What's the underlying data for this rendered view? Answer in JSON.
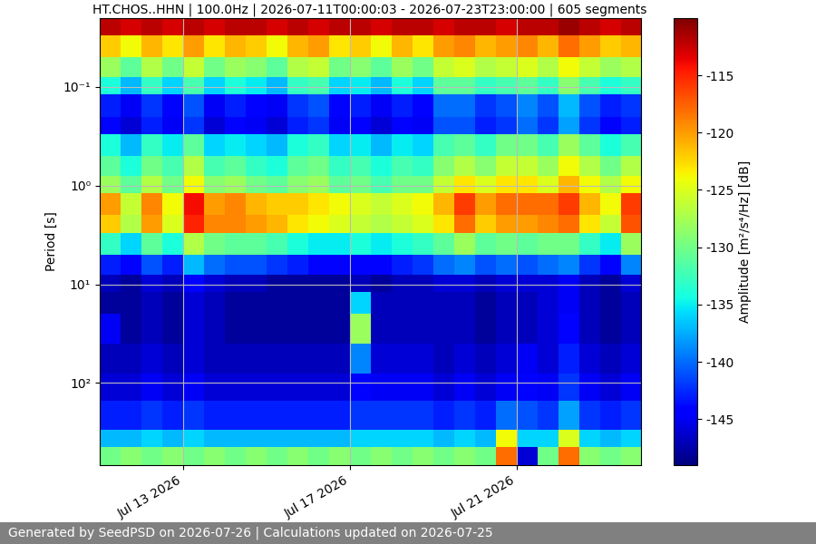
{
  "chart_data": {
    "type": "heatmap",
    "title": "HT.CHOS..HHN | 100.0Hz | 2026-07-11T00:00:03 - 2026-07-23T23:00:00 | 605 segments",
    "ylabel": "Period [s]",
    "footer": "Generated by SeedPSD on 2026-07-26 | Calculations updated on 2026-07-25",
    "log": "y",
    "grid": true,
    "xlim": [
      "2026-07-11T00:00:03",
      "2026-07-23T23:00:00"
    ],
    "xticks": [
      {
        "value": "2026-07-13",
        "label": "Jul 13 2026"
      },
      {
        "value": "2026-07-17",
        "label": "Jul 17 2026"
      },
      {
        "value": "2026-07-21",
        "label": "Jul 21 2026"
      }
    ],
    "ylim": [
      680,
      0.02
    ],
    "yticks": [
      {
        "value": 0.1,
        "label": "10⁻¹"
      },
      {
        "value": 1,
        "label": "10⁰"
      },
      {
        "value": 10,
        "label": "10¹"
      },
      {
        "value": 100,
        "label": "10²"
      }
    ],
    "time_edges": [
      "2026-07-11T00:00:03",
      "2026-07-11T12:00:00",
      "2026-07-12T00:00:00",
      "2026-07-12T12:00:00",
      "2026-07-13T00:00:00",
      "2026-07-13T12:00:00",
      "2026-07-14T00:00:00",
      "2026-07-14T12:00:00",
      "2026-07-15T00:00:00",
      "2026-07-15T12:00:00",
      "2026-07-16T00:00:00",
      "2026-07-16T12:00:00",
      "2026-07-17T00:00:00",
      "2026-07-17T12:00:00",
      "2026-07-18T00:00:00",
      "2026-07-18T12:00:00",
      "2026-07-19T00:00:00",
      "2026-07-19T12:00:00",
      "2026-07-20T00:00:00",
      "2026-07-20T12:00:00",
      "2026-07-21T00:00:00",
      "2026-07-21T12:00:00",
      "2026-07-22T00:00:00",
      "2026-07-22T12:00:00",
      "2026-07-23T00:00:00",
      "2026-07-23T12:00:00",
      "2026-07-23T23:00:00"
    ],
    "period_edges": [
      0.02,
      0.03,
      0.05,
      0.08,
      0.12,
      0.2,
      0.3,
      0.5,
      0.8,
      1.2,
      2,
      3,
      5,
      8,
      12,
      20,
      40,
      80,
      150,
      300,
      450,
      680
    ],
    "cells": [
      [
        -112,
        -113,
        -112,
        -113,
        -112,
        -113,
        -112,
        -112,
        -113,
        -112,
        -113,
        -112,
        -112,
        -113,
        -112,
        -112,
        -113,
        -112,
        -112,
        -113,
        -112,
        -112,
        -111,
        -112,
        -113,
        -112
      ],
      [
        -122,
        -124,
        -121,
        -123,
        -120,
        -123,
        -121,
        -122,
        -124,
        -121,
        -120,
        -123,
        -122,
        -124,
        -121,
        -123,
        -120,
        -119,
        -121,
        -120,
        -119,
        -121,
        -118,
        -120,
        -122,
        -121
      ],
      [
        -128,
        -131,
        -127,
        -130,
        -126,
        -130,
        -128,
        -129,
        -131,
        -127,
        -126,
        -130,
        -129,
        -131,
        -128,
        -130,
        -126,
        -125,
        -127,
        -126,
        -125,
        -127,
        -124,
        -126,
        -128,
        -127
      ],
      [
        -134,
        -137,
        -133,
        -136,
        -132,
        -136,
        -134,
        -135,
        -137,
        -133,
        -132,
        -136,
        -135,
        -137,
        -134,
        -136,
        -131,
        -131,
        -133,
        -132,
        -131,
        -133,
        -129,
        -132,
        -134,
        -133
      ],
      [
        -143,
        -145,
        -142,
        -144,
        -141,
        -145,
        -143,
        -144,
        -145,
        -142,
        -141,
        -144,
        -143,
        -145,
        -143,
        -144,
        -140,
        -140,
        -142,
        -141,
        -139,
        -141,
        -137,
        -141,
        -143,
        -142
      ],
      [
        -144,
        -146,
        -143,
        -145,
        -142,
        -146,
        -144,
        -145,
        -146,
        -143,
        -142,
        -145,
        -144,
        -146,
        -144,
        -145,
        -141,
        -141,
        -143,
        -142,
        -140,
        -142,
        -138,
        -142,
        -144,
        -143
      ],
      [
        -134,
        -137,
        -133,
        -135,
        -131,
        -136,
        -135,
        -136,
        -137,
        -134,
        -133,
        -136,
        -135,
        -137,
        -135,
        -136,
        -132,
        -131,
        -133,
        -130,
        -130,
        -132,
        -128,
        -131,
        -134,
        -132
      ],
      [
        -131,
        -134,
        -130,
        -132,
        -127,
        -132,
        -131,
        -133,
        -134,
        -131,
        -130,
        -133,
        -132,
        -134,
        -132,
        -133,
        -129,
        -127,
        -129,
        -126,
        -126,
        -128,
        -124,
        -127,
        -130,
        -127
      ],
      [
        -128,
        -131,
        -127,
        -130,
        -124,
        -129,
        -128,
        -130,
        -131,
        -129,
        -128,
        -131,
        -130,
        -132,
        -130,
        -130,
        -126,
        -123,
        -125,
        -123,
        -123,
        -125,
        -121,
        -124,
        -127,
        -124
      ],
      [
        -120,
        -126,
        -119,
        -124,
        -114,
        -120,
        -119,
        -121,
        -122,
        -122,
        -123,
        -124,
        -125,
        -126,
        -125,
        -124,
        -121,
        -116,
        -120,
        -118,
        -118,
        -118,
        -116,
        -121,
        -124,
        -116
      ],
      [
        -122,
        -127,
        -120,
        -125,
        -115,
        -119,
        -119,
        -120,
        -121,
        -123,
        -124,
        -125,
        -126,
        -127,
        -126,
        -125,
        -123,
        -118,
        -122,
        -120,
        -120,
        -119,
        -118,
        -123,
        -126,
        -117
      ],
      [
        -133,
        -136,
        -131,
        -134,
        -127,
        -130,
        -131,
        -131,
        -132,
        -134,
        -135,
        -135,
        -134,
        -135,
        -134,
        -133,
        -131,
        -128,
        -131,
        -130,
        -131,
        -130,
        -130,
        -133,
        -135,
        -128
      ],
      [
        -143,
        -144,
        -141,
        -143,
        -137,
        -140,
        -141,
        -141,
        -142,
        -143,
        -144,
        -144,
        -144,
        -144,
        -143,
        -142,
        -140,
        -139,
        -141,
        -140,
        -141,
        -140,
        -139,
        -142,
        -144,
        -139
      ],
      [
        -147,
        -148,
        -146,
        -147,
        -144,
        -146,
        -147,
        -147,
        -148,
        -148,
        -148,
        -148,
        -147,
        -148,
        -147,
        -147,
        -146,
        -146,
        -147,
        -146,
        -146,
        -146,
        -145,
        -147,
        -148,
        -146
      ],
      [
        -148,
        -148,
        -147,
        -148,
        -146,
        -147,
        -148,
        -148,
        -148,
        -148,
        -148,
        -148,
        -136,
        -147,
        -147,
        -147,
        -147,
        -147,
        -148,
        -147,
        -147,
        -146,
        -145,
        -147,
        -148,
        -147
      ],
      [
        -145,
        -148,
        -147,
        -148,
        -146,
        -147,
        -148,
        -148,
        -148,
        -148,
        -148,
        -148,
        -128,
        -147,
        -147,
        -147,
        -147,
        -147,
        -148,
        -147,
        -147,
        -146,
        -144,
        -147,
        -148,
        -147
      ],
      [
        -147,
        -147,
        -146,
        -147,
        -146,
        -147,
        -147,
        -147,
        -147,
        -147,
        -147,
        -147,
        -139,
        -146,
        -146,
        -146,
        -147,
        -146,
        -147,
        -146,
        -145,
        -146,
        -143,
        -146,
        -147,
        -146
      ],
      [
        -146,
        -146,
        -145,
        -146,
        -145,
        -146,
        -146,
        -146,
        -146,
        -146,
        -146,
        -146,
        -144,
        -145,
        -145,
        -145,
        -146,
        -145,
        -146,
        -145,
        -144,
        -145,
        -142,
        -145,
        -146,
        -145
      ],
      [
        -143,
        -143,
        -142,
        -143,
        -142,
        -143,
        -143,
        -143,
        -143,
        -143,
        -143,
        -143,
        -142,
        -142,
        -142,
        -142,
        -143,
        -142,
        -143,
        -140,
        -141,
        -142,
        -138,
        -142,
        -143,
        -142
      ],
      [
        -137,
        -137,
        -136,
        -137,
        -136,
        -137,
        -137,
        -137,
        -137,
        -137,
        -137,
        -137,
        -136,
        -136,
        -136,
        -136,
        -137,
        -136,
        -137,
        -124,
        -136,
        -136,
        -125,
        -136,
        -137,
        -136
      ],
      [
        -130,
        -129,
        -130,
        -129,
        -130,
        -129,
        -130,
        -129,
        -130,
        -129,
        -130,
        -129,
        -130,
        -129,
        -130,
        -129,
        -130,
        -129,
        -130,
        -118,
        -146,
        -130,
        -118,
        -129,
        -130,
        -129
      ]
    ],
    "colorbar": {
      "label": "Amplitude [m²/s⁴/Hz] [dB]",
      "range": [
        -149,
        -110
      ],
      "ticks": [
        -145,
        -140,
        -135,
        -130,
        -125,
        -120,
        -115
      ]
    }
  }
}
